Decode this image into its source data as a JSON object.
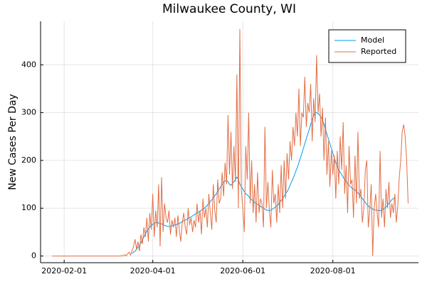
{
  "chart_data": {
    "type": "line",
    "title": "Milwaukee County, WI",
    "ylabel": "New Cases Per Day",
    "x": [
      "2020-01-24",
      "2020-01-25",
      "2020-01-26",
      "2020-01-27",
      "2020-01-28",
      "2020-01-29",
      "2020-01-30",
      "2020-01-31",
      "2020-02-01",
      "2020-02-02",
      "2020-02-03",
      "2020-02-04",
      "2020-02-05",
      "2020-02-06",
      "2020-02-07",
      "2020-02-08",
      "2020-02-09",
      "2020-02-10",
      "2020-02-11",
      "2020-02-12",
      "2020-02-13",
      "2020-02-14",
      "2020-02-15",
      "2020-02-16",
      "2020-02-17",
      "2020-02-18",
      "2020-02-19",
      "2020-02-20",
      "2020-02-21",
      "2020-02-22",
      "2020-02-23",
      "2020-02-24",
      "2020-02-25",
      "2020-02-26",
      "2020-02-27",
      "2020-02-28",
      "2020-02-29",
      "2020-03-01",
      "2020-03-02",
      "2020-03-03",
      "2020-03-04",
      "2020-03-05",
      "2020-03-06",
      "2020-03-07",
      "2020-03-08",
      "2020-03-09",
      "2020-03-10",
      "2020-03-11",
      "2020-03-12",
      "2020-03-13",
      "2020-03-14",
      "2020-03-15",
      "2020-03-16",
      "2020-03-17",
      "2020-03-18",
      "2020-03-19",
      "2020-03-20",
      "2020-03-21",
      "2020-03-22",
      "2020-03-23",
      "2020-03-24",
      "2020-03-25",
      "2020-03-26",
      "2020-03-27",
      "2020-03-28",
      "2020-03-29",
      "2020-03-30",
      "2020-03-31",
      "2020-04-01",
      "2020-04-02",
      "2020-04-03",
      "2020-04-04",
      "2020-04-05",
      "2020-04-06",
      "2020-04-07",
      "2020-04-08",
      "2020-04-09",
      "2020-04-10",
      "2020-04-11",
      "2020-04-12",
      "2020-04-13",
      "2020-04-14",
      "2020-04-15",
      "2020-04-16",
      "2020-04-17",
      "2020-04-18",
      "2020-04-19",
      "2020-04-20",
      "2020-04-21",
      "2020-04-22",
      "2020-04-23",
      "2020-04-24",
      "2020-04-25",
      "2020-04-26",
      "2020-04-27",
      "2020-04-28",
      "2020-04-29",
      "2020-04-30",
      "2020-05-01",
      "2020-05-02",
      "2020-05-03",
      "2020-05-04",
      "2020-05-05",
      "2020-05-06",
      "2020-05-07",
      "2020-05-08",
      "2020-05-09",
      "2020-05-10",
      "2020-05-11",
      "2020-05-12",
      "2020-05-13",
      "2020-05-14",
      "2020-05-15",
      "2020-05-16",
      "2020-05-17",
      "2020-05-18",
      "2020-05-19",
      "2020-05-20",
      "2020-05-21",
      "2020-05-22",
      "2020-05-23",
      "2020-05-24",
      "2020-05-25",
      "2020-05-26",
      "2020-05-27",
      "2020-05-28",
      "2020-05-29",
      "2020-05-30",
      "2020-05-31",
      "2020-06-01",
      "2020-06-02",
      "2020-06-03",
      "2020-06-04",
      "2020-06-05",
      "2020-06-06",
      "2020-06-07",
      "2020-06-08",
      "2020-06-09",
      "2020-06-10",
      "2020-06-11",
      "2020-06-12",
      "2020-06-13",
      "2020-06-14",
      "2020-06-15",
      "2020-06-16",
      "2020-06-17",
      "2020-06-18",
      "2020-06-19",
      "2020-06-20",
      "2020-06-21",
      "2020-06-22",
      "2020-06-23",
      "2020-06-24",
      "2020-06-25",
      "2020-06-26",
      "2020-06-27",
      "2020-06-28",
      "2020-06-29",
      "2020-06-30",
      "2020-07-01",
      "2020-07-02",
      "2020-07-03",
      "2020-07-04",
      "2020-07-05",
      "2020-07-06",
      "2020-07-07",
      "2020-07-08",
      "2020-07-09",
      "2020-07-10",
      "2020-07-11",
      "2020-07-12",
      "2020-07-13",
      "2020-07-14",
      "2020-07-15",
      "2020-07-16",
      "2020-07-17",
      "2020-07-18",
      "2020-07-19",
      "2020-07-20",
      "2020-07-21",
      "2020-07-22",
      "2020-07-23",
      "2020-07-24",
      "2020-07-25",
      "2020-07-26",
      "2020-07-27",
      "2020-07-28",
      "2020-07-29",
      "2020-07-30",
      "2020-07-31",
      "2020-08-01",
      "2020-08-02",
      "2020-08-03",
      "2020-08-04",
      "2020-08-05",
      "2020-08-06",
      "2020-08-07",
      "2020-08-08",
      "2020-08-09",
      "2020-08-10",
      "2020-08-11",
      "2020-08-12",
      "2020-08-13",
      "2020-08-14",
      "2020-08-15",
      "2020-08-16",
      "2020-08-17",
      "2020-08-18",
      "2020-08-19",
      "2020-08-20",
      "2020-08-21",
      "2020-08-22",
      "2020-08-23",
      "2020-08-24",
      "2020-08-25",
      "2020-08-26",
      "2020-08-27",
      "2020-08-28",
      "2020-08-29",
      "2020-08-30",
      "2020-08-31",
      "2020-09-01",
      "2020-09-02",
      "2020-09-03",
      "2020-09-04",
      "2020-09-05",
      "2020-09-06",
      "2020-09-07",
      "2020-09-08",
      "2020-09-09",
      "2020-09-10",
      "2020-09-11",
      "2020-09-12",
      "2020-09-13",
      "2020-09-14",
      "2020-09-15",
      "2020-09-16",
      "2020-09-17",
      "2020-09-18",
      "2020-09-19",
      "2020-09-20",
      "2020-09-21"
    ],
    "series": [
      {
        "name": "Model",
        "color": "#009af9",
        "values": [
          null,
          null,
          null,
          null,
          null,
          null,
          null,
          null,
          null,
          null,
          null,
          null,
          null,
          null,
          null,
          null,
          null,
          null,
          null,
          null,
          null,
          null,
          null,
          null,
          null,
          null,
          null,
          null,
          null,
          null,
          null,
          null,
          null,
          null,
          null,
          null,
          null,
          null,
          null,
          null,
          null,
          null,
          null,
          null,
          null,
          null,
          null,
          null,
          null,
          null,
          null,
          null,
          null,
          null,
          5,
          8,
          10,
          14,
          18,
          22,
          28,
          34,
          40,
          46,
          52,
          57,
          61,
          64,
          66,
          68,
          70,
          70,
          69,
          68,
          67,
          66,
          64,
          63,
          62,
          62,
          62,
          63,
          64,
          65,
          66,
          67,
          68,
          70,
          72,
          74,
          75,
          77,
          79,
          80,
          82,
          84,
          86,
          88,
          90,
          92,
          94,
          96,
          98,
          100,
          103,
          106,
          110,
          114,
          118,
          122,
          126,
          130,
          135,
          140,
          145,
          150,
          155,
          157,
          158,
          155,
          150,
          148,
          152,
          155,
          160,
          165,
          160,
          150,
          145,
          140,
          135,
          130,
          128,
          125,
          120,
          118,
          115,
          112,
          110,
          108,
          106,
          104,
          102,
          100,
          98,
          96,
          96,
          95,
          96,
          98,
          100,
          102,
          105,
          108,
          112,
          116,
          120,
          125,
          130,
          135,
          140,
          148,
          155,
          162,
          170,
          178,
          186,
          195,
          205,
          215,
          225,
          235,
          245,
          255,
          265,
          275,
          285,
          295,
          300,
          300,
          298,
          295,
          290,
          285,
          275,
          265,
          255,
          245,
          235,
          225,
          215,
          205,
          195,
          188,
          180,
          175,
          170,
          165,
          160,
          156,
          152,
          148,
          145,
          142,
          140,
          138,
          135,
          132,
          128,
          125,
          120,
          116,
          112,
          108,
          105,
          102,
          100,
          98,
          97,
          96,
          96,
          95,
          95,
          96,
          98,
          100,
          103,
          106,
          110,
          114,
          118,
          120,
          122,
          null,
          null,
          null,
          null,
          null,
          null,
          null,
          null,
          null
        ]
      },
      {
        "name": "Reported",
        "color": "#e26f46",
        "values": [
          0,
          0,
          0,
          0,
          0,
          0,
          0,
          0,
          0,
          0,
          0,
          0,
          0,
          0,
          0,
          0,
          0,
          0,
          0,
          0,
          0,
          0,
          0,
          0,
          0,
          0,
          0,
          0,
          0,
          0,
          0,
          0,
          0,
          0,
          0,
          0,
          0,
          0,
          0,
          0,
          0,
          0,
          0,
          0,
          0,
          0,
          0,
          1,
          0,
          3,
          0,
          5,
          8,
          2,
          12,
          20,
          35,
          15,
          30,
          10,
          45,
          25,
          60,
          40,
          80,
          30,
          90,
          55,
          130,
          40,
          95,
          60,
          150,
          20,
          165,
          50,
          110,
          80,
          70,
          95,
          45,
          75,
          60,
          80,
          40,
          85,
          55,
          30,
          70,
          90,
          60,
          45,
          100,
          65,
          80,
          50,
          75,
          60,
          110,
          70,
          95,
          45,
          120,
          80,
          100,
          60,
          130,
          90,
          55,
          150,
          95,
          70,
          160,
          110,
          120,
          175,
          125,
          195,
          150,
          295,
          170,
          260,
          140,
          230,
          155,
          380,
          100,
          475,
          140,
          100,
          50,
          230,
          160,
          300,
          110,
          200,
          90,
          150,
          70,
          175,
          90,
          120,
          110,
          60,
          270,
          100,
          155,
          95,
          60,
          180,
          110,
          130,
          70,
          150,
          90,
          190,
          100,
          200,
          120,
          215,
          160,
          240,
          200,
          270,
          230,
          300,
          250,
          350,
          230,
          300,
          290,
          375,
          270,
          320,
          300,
          360,
          240,
          330,
          280,
          420,
          300,
          340,
          250,
          310,
          200,
          290,
          170,
          240,
          145,
          220,
          170,
          210,
          120,
          220,
          150,
          250,
          180,
          280,
          130,
          190,
          90,
          230,
          150,
          160,
          80,
          210,
          110,
          260,
          120,
          140,
          70,
          100,
          180,
          200,
          60,
          95,
          150,
          0,
          100,
          130,
          90,
          60,
          220,
          80,
          120,
          60,
          140,
          100,
          155,
          80,
          110,
          90,
          130,
          70,
          105,
          165,
          200,
          260,
          275,
          250,
          200,
          110
        ]
      }
    ],
    "xlim": [
      "2020-01-16",
      "2020-09-28"
    ],
    "xticks": [
      "2020-02-01",
      "2020-04-01",
      "2020-06-01",
      "2020-08-01"
    ],
    "ylim": [
      -14,
      491
    ],
    "yticks": [
      0,
      100,
      200,
      300,
      400
    ],
    "grid": true,
    "legend": "top-right"
  }
}
